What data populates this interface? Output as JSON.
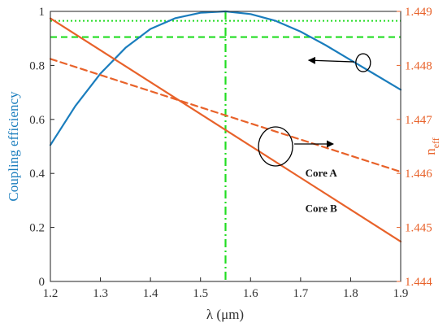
{
  "chart_data": {
    "type": "line",
    "xlabel": "λ (μm)",
    "ylabel_left": "Coupling efficiency",
    "ylabel_right_base": "n",
    "ylabel_right_sub": "eff",
    "xlim": [
      1.2,
      1.9
    ],
    "ylim_left": [
      0,
      1
    ],
    "ylim_right": [
      1.444,
      1.449
    ],
    "x_ticks": [
      "1.2",
      "1.3",
      "1.4",
      "1.5",
      "1.6",
      "1.7",
      "1.8",
      "1.9"
    ],
    "y_ticks_left": [
      "0",
      "0.2",
      "0.4",
      "0.6",
      "0.8",
      "1"
    ],
    "y_ticks_right": [
      "1.444",
      "1.445",
      "1.446",
      "1.447",
      "1.448",
      "1.449"
    ],
    "grid": false,
    "colors": {
      "efficiency": "#1a7dbd",
      "neff": "#e8622a",
      "guides": "#22dd22",
      "left_axis": "#1a7dbd",
      "right_axis": "#e8622a"
    },
    "series": [
      {
        "axis": "left",
        "style": "solid",
        "x": [
          1.2,
          1.25,
          1.3,
          1.35,
          1.4,
          1.45,
          1.5,
          1.55,
          1.6,
          1.65,
          1.7,
          1.75,
          1.8,
          1.85,
          1.9
        ],
        "values": [
          0.505,
          0.65,
          0.77,
          0.865,
          0.935,
          0.975,
          0.995,
          1.0,
          0.99,
          0.965,
          0.925,
          0.875,
          0.82,
          0.765,
          0.71
        ]
      },
      {
        "name": "Core A",
        "axis": "right",
        "style": "dashed",
        "x": [
          1.2,
          1.9
        ],
        "values": [
          1.44812,
          1.44603
        ]
      },
      {
        "name": "Core B",
        "axis": "right",
        "style": "solid",
        "x": [
          1.2,
          1.9
        ],
        "values": [
          1.44887,
          1.44474
        ]
      }
    ],
    "reference_lines": [
      {
        "orientation": "horizontal",
        "axis": "left",
        "value": 0.965,
        "style": "dotted"
      },
      {
        "orientation": "horizontal",
        "axis": "left",
        "value": 0.905,
        "style": "dashed"
      },
      {
        "orientation": "vertical",
        "value": 1.55,
        "style": "dashdot"
      }
    ],
    "annotations": [
      {
        "text": "Core A",
        "x": 1.75,
        "y_left": 0.4
      },
      {
        "text": "Core B",
        "x": 1.75,
        "y_left": 0.27
      }
    ],
    "markers": [
      {
        "shape": "ellipse",
        "x": 1.825,
        "y_left": 0.81,
        "arrow_to": "left"
      },
      {
        "shape": "ellipse",
        "x": 1.65,
        "y_left": 0.5,
        "arrow_to": "right"
      }
    ]
  }
}
